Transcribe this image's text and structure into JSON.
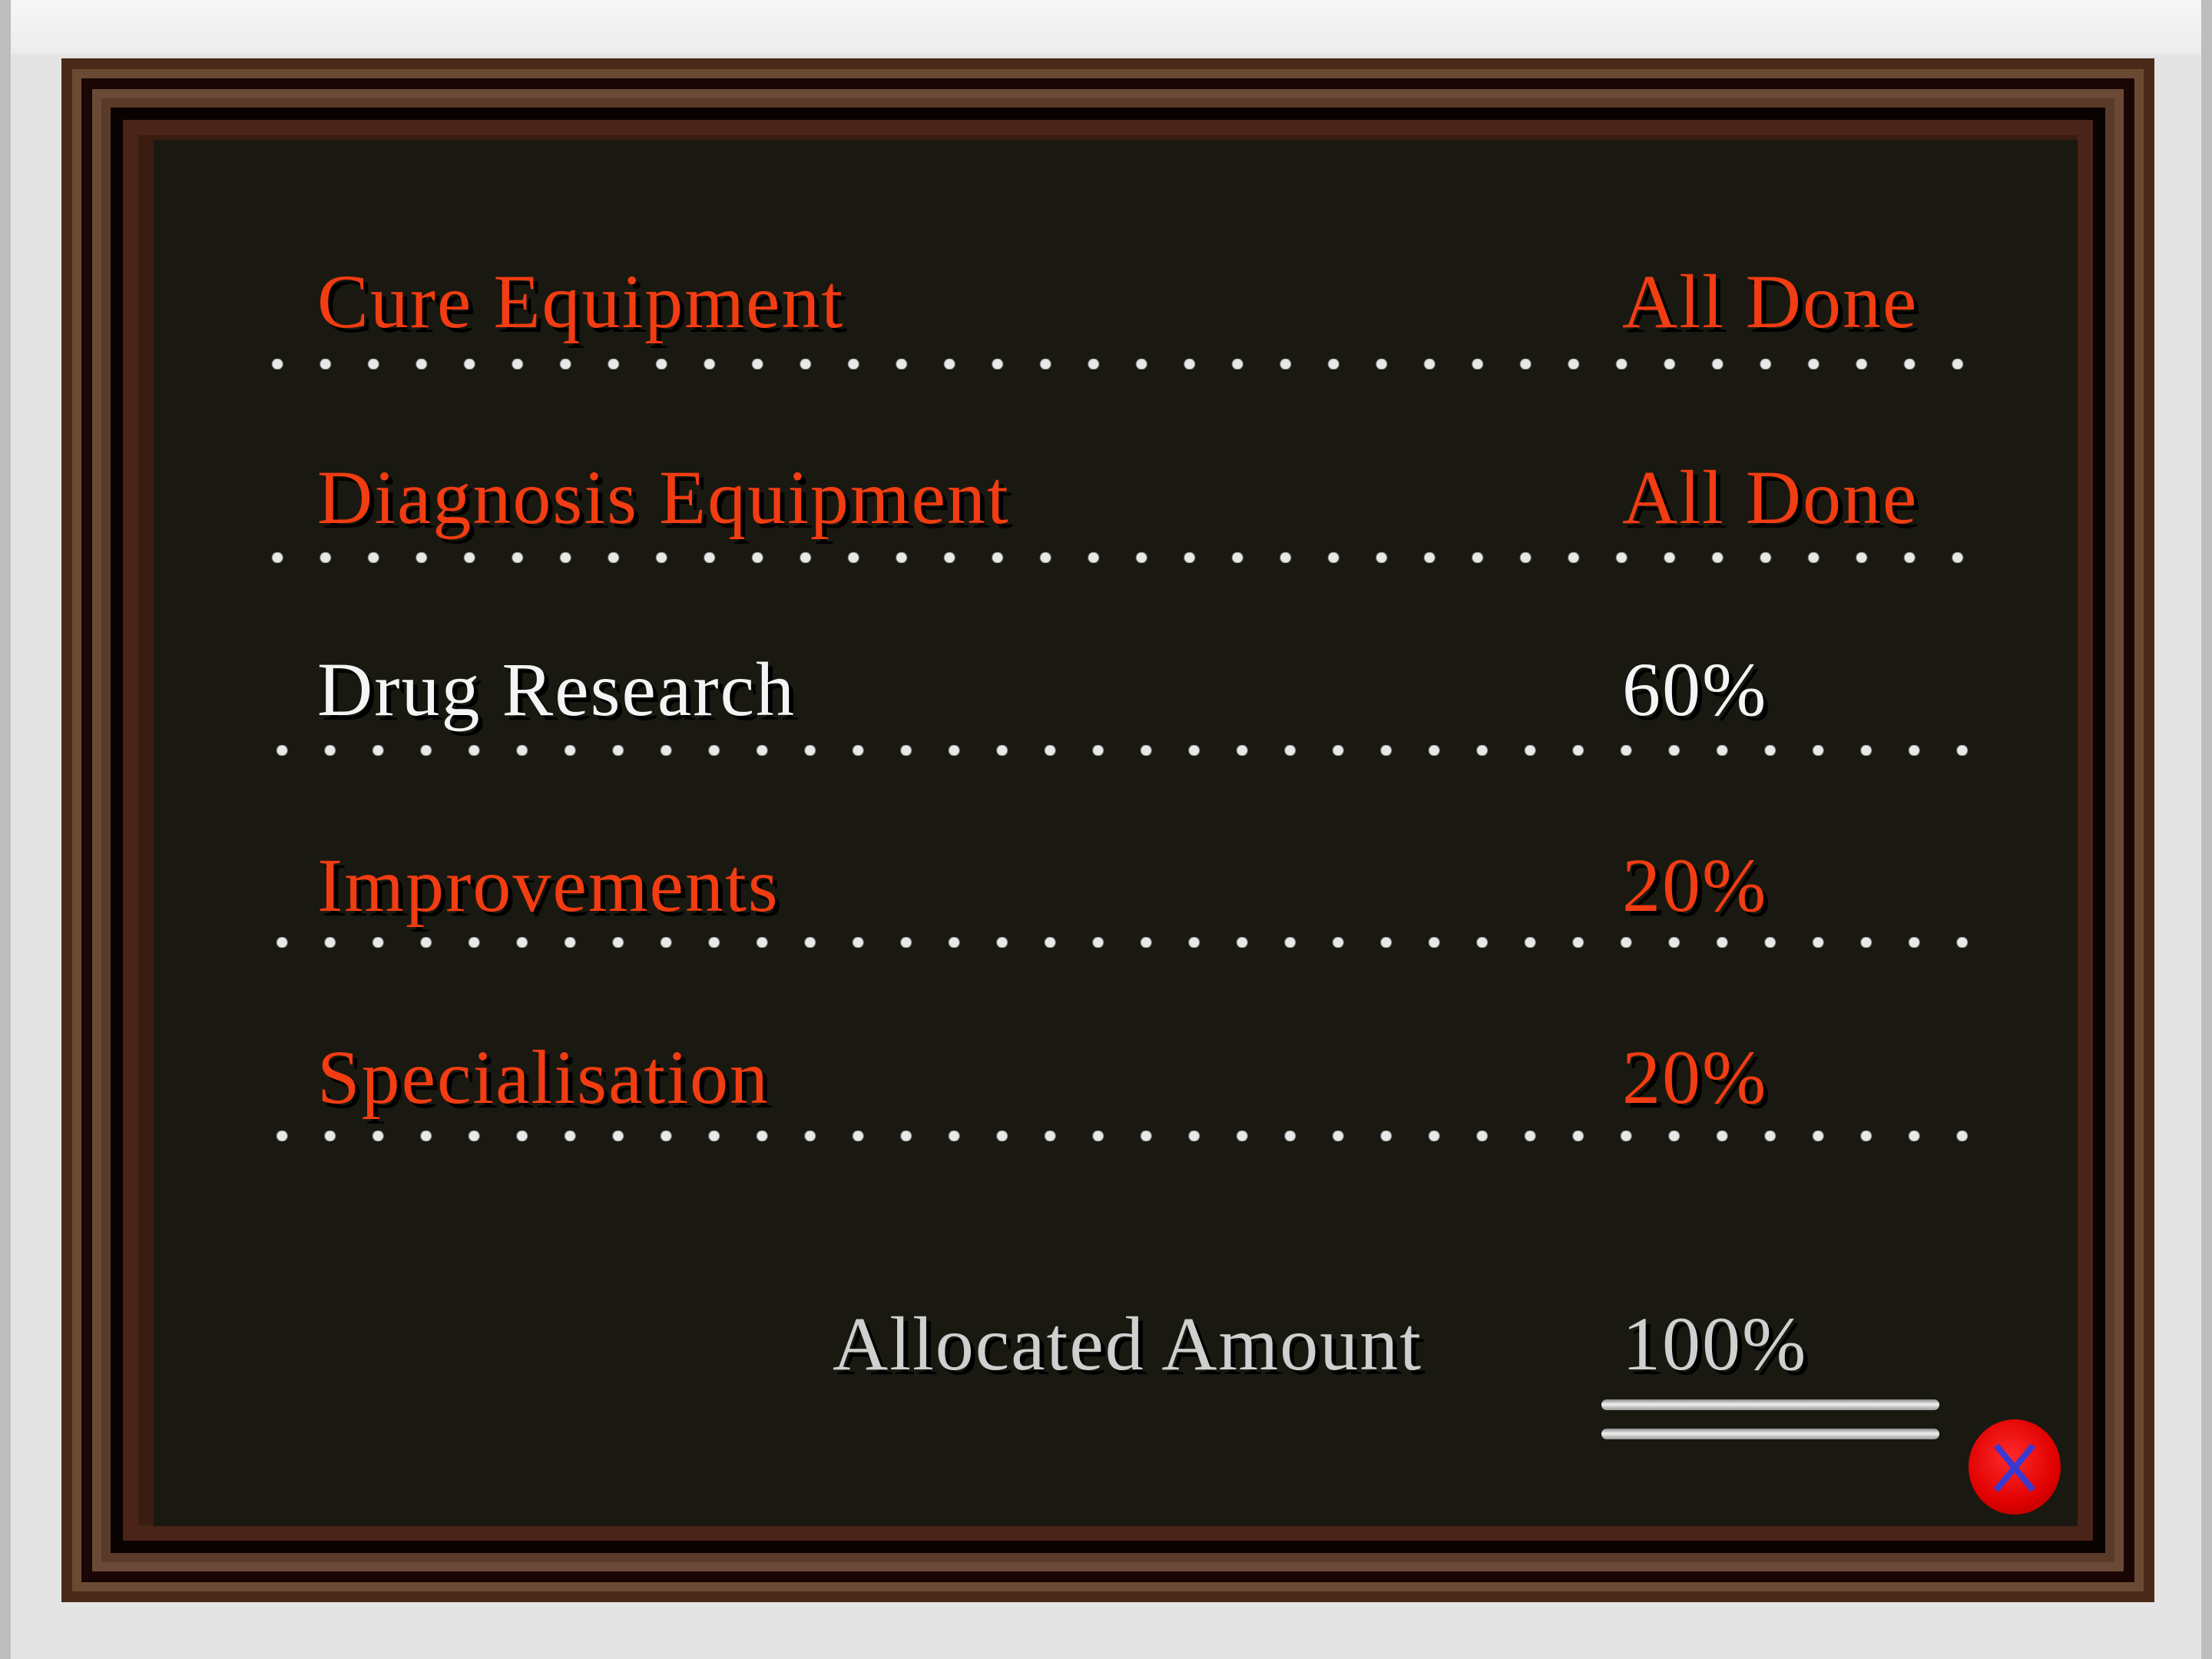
{
  "research": {
    "rows": [
      {
        "label": "Cure Equipment",
        "value": "All Done",
        "state": "done"
      },
      {
        "label": "Diagnosis Equipment",
        "value": "All Done",
        "state": "done"
      },
      {
        "label": "Drug Research",
        "value": "60%",
        "state": "selected"
      },
      {
        "label": "Improvements",
        "value": "20%",
        "state": "normal"
      },
      {
        "label": "Specialisation",
        "value": "20%",
        "state": "normal"
      }
    ],
    "allocated_label": "Allocated Amount",
    "allocated_value": "100%"
  },
  "close_button": {
    "icon": "close-x-icon"
  },
  "colors": {
    "text_red": "#f23c12",
    "text_white": "#f4f4f4",
    "board": "#1a1911",
    "frame": "#3a1c10",
    "close": "#e00000",
    "close_x": "#3a3ad0"
  }
}
